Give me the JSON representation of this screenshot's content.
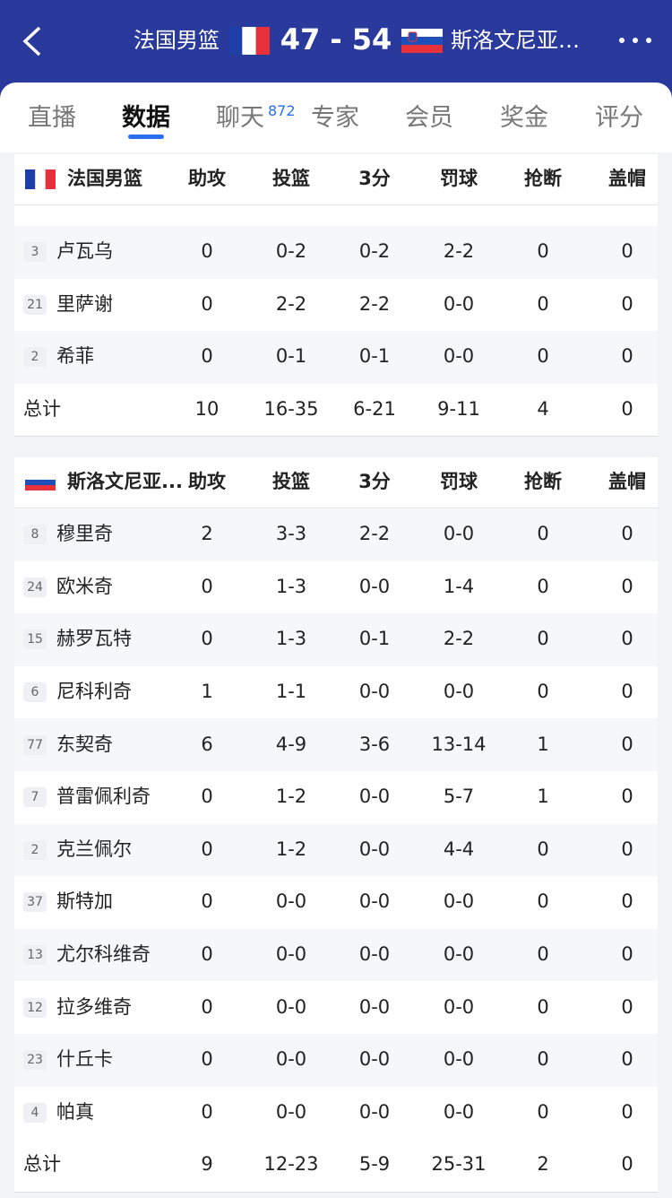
{
  "header": {
    "home_team": "法国男篮",
    "score": "47 - 54",
    "away_team": "斯洛文尼亚…"
  },
  "tabs": {
    "items": [
      "直播",
      "数据",
      "聊天",
      "专家",
      "会员",
      "奖金",
      "评分"
    ],
    "active": 1,
    "chat_count": "872"
  },
  "teams": [
    {
      "name": "法国男篮",
      "columns": [
        "助攻",
        "投篮",
        "3分",
        "罚球",
        "抢断",
        "盖帽"
      ],
      "players": [
        {
          "number": 3,
          "name": "卢瓦乌",
          "stats": [
            0,
            "0-2",
            "0-2",
            "2-2",
            0,
            0
          ]
        },
        {
          "number": 21,
          "name": "里萨谢",
          "stats": [
            0,
            "2-2",
            "2-2",
            "0-0",
            0,
            0
          ]
        },
        {
          "number": 2,
          "name": "希菲",
          "stats": [
            0,
            "0-1",
            "0-1",
            "0-0",
            0,
            0
          ]
        }
      ],
      "total": {
        "label": "总计",
        "stats": [
          10,
          "16-35",
          "6-21",
          "9-11",
          4,
          0
        ]
      }
    },
    {
      "name": "斯洛文尼亚...",
      "columns": [
        "助攻",
        "投篮",
        "3分",
        "罚球",
        "抢断",
        "盖帽"
      ],
      "players": [
        {
          "number": 8,
          "name": "穆里奇",
          "stats": [
            2,
            "3-3",
            "2-2",
            "0-0",
            0,
            0
          ]
        },
        {
          "number": 24,
          "name": "欧米奇",
          "stats": [
            0,
            "1-3",
            "0-0",
            "1-4",
            0,
            0
          ]
        },
        {
          "number": 15,
          "name": "赫罗瓦特",
          "stats": [
            0,
            "1-3",
            "0-1",
            "2-2",
            0,
            0
          ]
        },
        {
          "number": 6,
          "name": "尼科利奇",
          "stats": [
            1,
            "1-1",
            "0-0",
            "0-0",
            0,
            0
          ]
        },
        {
          "number": 77,
          "name": "东契奇",
          "stats": [
            6,
            "4-9",
            "3-6",
            "13-14",
            1,
            0
          ]
        },
        {
          "number": 7,
          "name": "普雷佩利奇",
          "stats": [
            0,
            "1-2",
            "0-0",
            "5-7",
            1,
            0
          ]
        },
        {
          "number": 2,
          "name": "克兰佩尔",
          "stats": [
            0,
            "1-2",
            "0-0",
            "4-4",
            0,
            0
          ]
        },
        {
          "number": 37,
          "name": "斯特加",
          "stats": [
            0,
            "0-0",
            "0-0",
            "0-0",
            0,
            0
          ]
        },
        {
          "number": 13,
          "name": "尤尔科维奇",
          "stats": [
            0,
            "0-0",
            "0-0",
            "0-0",
            0,
            0
          ]
        },
        {
          "number": 12,
          "name": "拉多维奇",
          "stats": [
            0,
            "0-0",
            "0-0",
            "0-0",
            0,
            0
          ]
        },
        {
          "number": 23,
          "name": "什丘卡",
          "stats": [
            0,
            "0-0",
            "0-0",
            "0-0",
            0,
            0
          ]
        },
        {
          "number": 4,
          "name": "帕真",
          "stats": [
            0,
            "0-0",
            "0-0",
            "0-0",
            0,
            0
          ]
        }
      ],
      "total": {
        "label": "总计",
        "stats": [
          9,
          "12-23",
          "5-9",
          "25-31",
          2,
          0
        ]
      }
    }
  ]
}
